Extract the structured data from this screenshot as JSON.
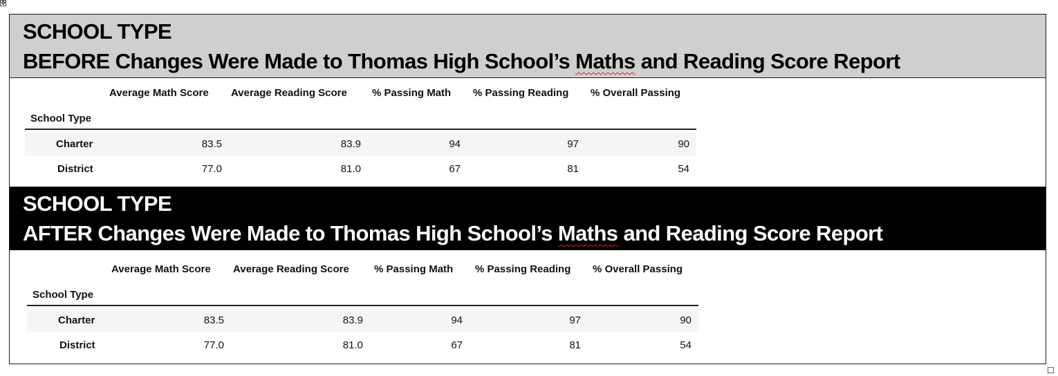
{
  "handles": {
    "move_glyph": "✥"
  },
  "before": {
    "line1": "SCHOOL TYPE",
    "line2_prefix": "BEFORE Changes Were Made to Thomas High School’s ",
    "line2_flagged": "Maths",
    "line2_suffix": " and Reading Score Report"
  },
  "after": {
    "line1": "SCHOOL TYPE",
    "line2_prefix": "AFTER Changes Were Made to Thomas High School’s ",
    "line2_flagged": "Maths",
    "line2_suffix": " and Reading Score Report"
  },
  "table_before": {
    "columns": [
      "Average Math Score",
      "Average Reading Score",
      "% Passing Math",
      "% Passing Reading",
      "% Overall Passing"
    ],
    "index_name": "School Type",
    "rows": [
      {
        "label": "Charter",
        "values": [
          "83.5",
          "83.9",
          "94",
          "97",
          "90"
        ]
      },
      {
        "label": "District",
        "values": [
          "77.0",
          "81.0",
          "67",
          "81",
          "54"
        ]
      }
    ]
  },
  "table_after": {
    "columns": [
      "Average Math Score",
      "Average Reading Score",
      "% Passing Math",
      "% Passing Reading",
      "% Overall Passing"
    ],
    "index_name": "School Type",
    "rows": [
      {
        "label": "Charter",
        "values": [
          "83.5",
          "83.9",
          "94",
          "97",
          "90"
        ]
      },
      {
        "label": "District",
        "values": [
          "77.0",
          "81.0",
          "67",
          "81",
          "54"
        ]
      }
    ]
  },
  "colors": {
    "before_band": "#d0cfcf",
    "after_band": "#000000",
    "spelling_flag": "#d42020"
  }
}
